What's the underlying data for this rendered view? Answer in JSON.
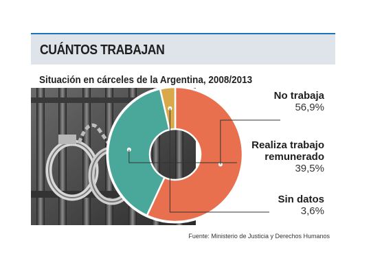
{
  "header": {
    "title": "CUÁNTOS TRABAJAN"
  },
  "chart_data": {
    "type": "pie",
    "title": "Situación en cárceles de la Argentina, 2008/2013",
    "slices": [
      {
        "label": "No trabaja",
        "value": 56.9,
        "display": "56,9%",
        "color": "#e8704f"
      },
      {
        "label": "Realiza trabajo remunerado",
        "label_line1": "Realiza trabajo",
        "label_line2": "remunerado",
        "value": 39.5,
        "display": "39,5%",
        "color": "#4aa89a"
      },
      {
        "label": "Sin datos",
        "value": 3.6,
        "display": "3,6%",
        "color": "#d9a84a"
      }
    ]
  },
  "source": "Fuente: Ministerio de Justicia y Derechos Humanos",
  "colors": {
    "accent": "#1a73b8",
    "header_band": "#dfe3ea"
  }
}
